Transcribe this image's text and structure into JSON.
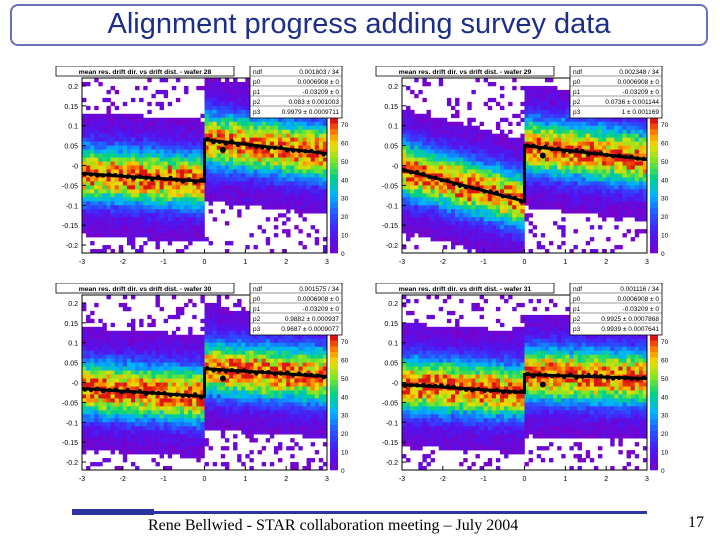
{
  "slide": {
    "title": "Alignment progress adding survey data",
    "footer": "Rene Bellwied - STAR collaboration meeting – July 2004",
    "page_number": "17",
    "accent_color": "#2b35a0"
  },
  "axes": {
    "y_ticks_left": [
      "0.2",
      "0.15",
      "0.1",
      "0.05",
      "-0",
      "-0.05",
      "-0.1",
      "-0.15",
      "-0.2"
    ],
    "x_ticks": [
      "-3",
      "-2",
      "-1",
      "0",
      "1",
      "2",
      "3"
    ],
    "z_ticks": [
      "70",
      "60",
      "50",
      "40",
      "30",
      "20",
      "10",
      "0"
    ]
  },
  "panels": [
    {
      "title": "mean res. drift dir. vs drift dist. - wafer 28",
      "ndf_label": "ndf",
      "ndf_value": "0.001803 / 34",
      "params": [
        {
          "name": "p0",
          "value": "0.0006908 ± 0"
        },
        {
          "name": "p1",
          "value": "-0.03209 ± 0"
        },
        {
          "name": "p2",
          "value": "0.083 ± 0.001003"
        },
        {
          "name": "p3",
          "value": "0.9979 ± 0.0009711"
        }
      ],
      "fit": {
        "left_start": -0.02,
        "left_end": -0.04,
        "right_start": 0.065,
        "right_end": 0.03
      }
    },
    {
      "title": "mean res. drift dir. vs drift dist. - wafer 29",
      "ndf_label": "ndf",
      "ndf_value": "0.002348 / 34",
      "params": [
        {
          "name": "p0",
          "value": "0.0006908 ± 0"
        },
        {
          "name": "p1",
          "value": "-0.03209 ± 0"
        },
        {
          "name": "p2",
          "value": "0.0736 ± 0.001144"
        },
        {
          "name": "p3",
          "value": "1 ± 0.001169"
        }
      ],
      "fit": {
        "left_start": -0.01,
        "left_end": -0.09,
        "right_start": 0.05,
        "right_end": 0.015
      }
    },
    {
      "title": "mean res. drift dir. vs drift dist. - wafer 30",
      "ndf_label": "ndf",
      "ndf_value": "0.001575 / 34",
      "params": [
        {
          "name": "p0",
          "value": "0.0006908 ± 0"
        },
        {
          "name": "p1",
          "value": "-0.03209 ± 0"
        },
        {
          "name": "p2",
          "value": "0.9882 ± 0.000937"
        },
        {
          "name": "p3",
          "value": "0.9687 ± 0.0009077"
        }
      ],
      "fit": {
        "left_start": -0.015,
        "left_end": -0.035,
        "right_start": 0.035,
        "right_end": 0.015
      }
    },
    {
      "title": "mean res. drift dir. vs drift dist. - wafer 31",
      "ndf_label": "ndf",
      "ndf_value": "0.001116 / 34",
      "params": [
        {
          "name": "p0",
          "value": "0.0006908 ± 0"
        },
        {
          "name": "p1",
          "value": "-0.03209 ± 0"
        },
        {
          "name": "p2",
          "value": "0.9925 ± 0.0007868"
        },
        {
          "name": "p3",
          "value": "0.9939 ± 0.0007641"
        }
      ],
      "fit": {
        "left_start": -0.005,
        "left_end": -0.025,
        "right_start": 0.02,
        "right_end": 0.01
      }
    }
  ]
}
